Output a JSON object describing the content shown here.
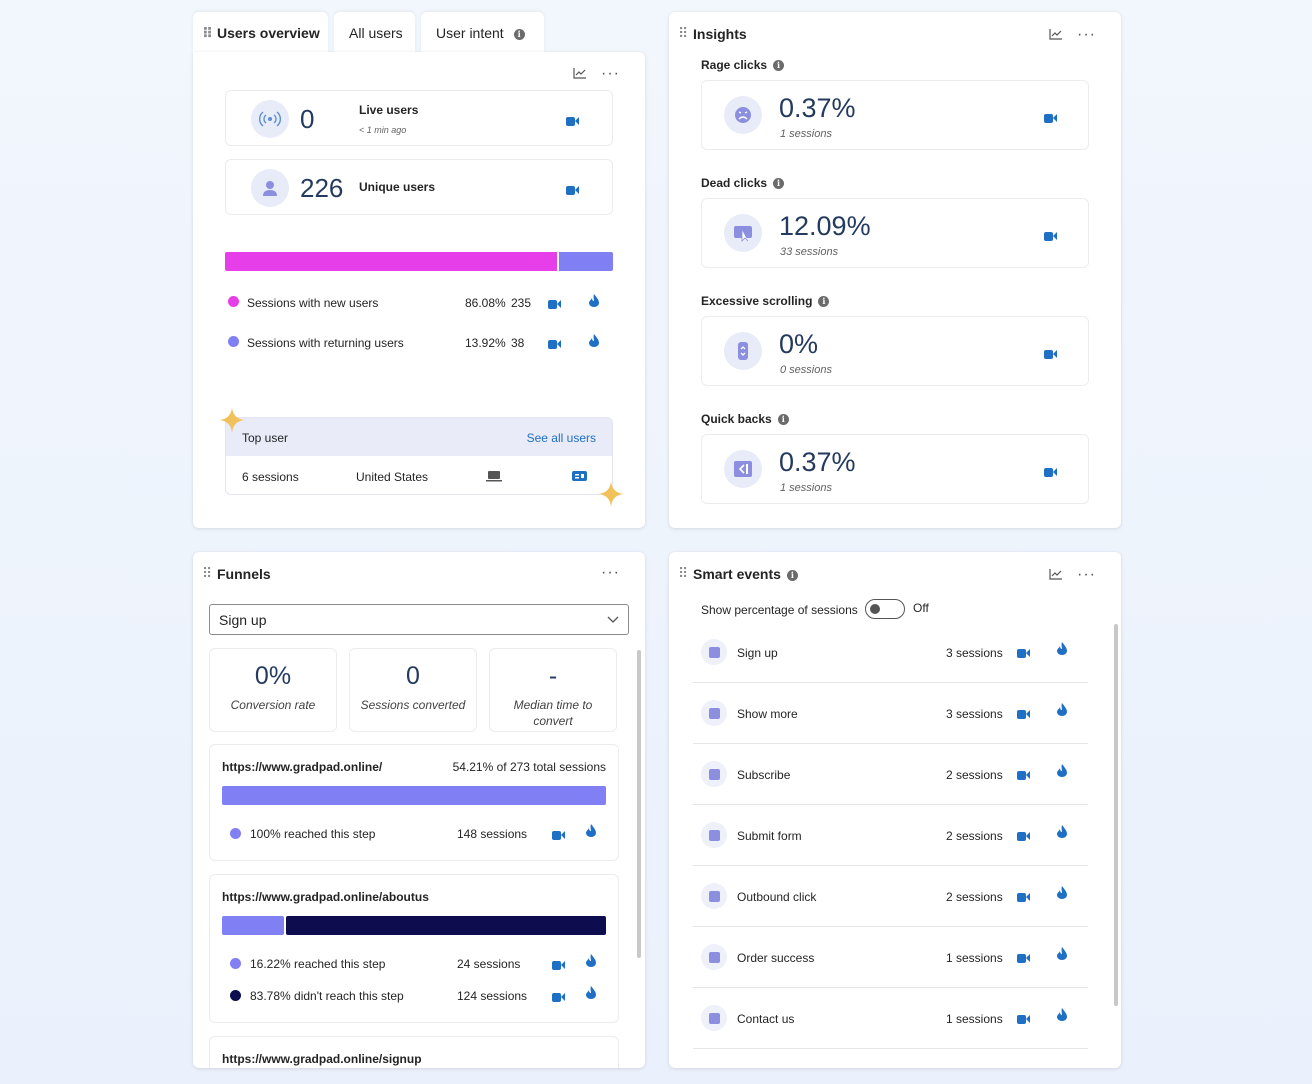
{
  "users_overview": {
    "tabs": [
      {
        "label": "Users overview"
      },
      {
        "label": "All users"
      },
      {
        "label": "User intent"
      }
    ],
    "live": {
      "value": "0",
      "label": "Live users",
      "sub": "< 1 min ago"
    },
    "unique": {
      "value": "226",
      "label": "Unique users"
    },
    "split_bar": {
      "new_fraction": 0.8608,
      "new_color": "#e63ee8",
      "returning_color": "#8080f4"
    },
    "legend": [
      {
        "label": "Sessions with new users",
        "pct": "86.08%",
        "count": "235",
        "color": "#e63ee8"
      },
      {
        "label": "Sessions with returning users",
        "pct": "13.92%",
        "count": "38",
        "color": "#8080f4"
      }
    ],
    "top_user": {
      "title": "Top user",
      "see_all": "See all users",
      "sessions": "6 sessions",
      "country": "United States"
    }
  },
  "insights": {
    "title": "Insights",
    "items": [
      {
        "label": "Rage clicks",
        "value": "0.37%",
        "sub": "1 sessions",
        "icon": "rage-face-icon"
      },
      {
        "label": "Dead clicks",
        "value": "12.09%",
        "sub": "33 sessions",
        "icon": "dead-click-icon"
      },
      {
        "label": "Excessive scrolling",
        "value": "0%",
        "sub": "0 sessions",
        "icon": "scroll-icon"
      },
      {
        "label": "Quick backs",
        "value": "0.37%",
        "sub": "1 sessions",
        "icon": "quick-back-icon"
      }
    ]
  },
  "funnels": {
    "title": "Funnels",
    "select_value": "Sign up",
    "stats": [
      {
        "value": "0%",
        "label": "Conversion rate"
      },
      {
        "value": "0",
        "label": "Sessions converted"
      },
      {
        "value": "-",
        "label": "Median time to convert"
      }
    ],
    "steps": [
      {
        "url": "https://www.gradpad.online/",
        "summary": "54.21% of 273 total sessions",
        "reached_fraction": 1.0,
        "rows": [
          {
            "label": "100% reached this step",
            "count": "148 sessions",
            "color": "#8080f4"
          }
        ]
      },
      {
        "url": "https://www.gradpad.online/aboutus",
        "summary": "",
        "reached_fraction": 0.1622,
        "rows": [
          {
            "label": "16.22% reached this step",
            "count": "24 sessions",
            "color": "#8080f4"
          },
          {
            "label": "83.78% didn't reach this step",
            "count": "124 sessions",
            "color": "#0c0c4e"
          }
        ]
      },
      {
        "url": "https://www.gradpad.online/signup",
        "summary": "",
        "rows": []
      }
    ]
  },
  "smart_events": {
    "title": "Smart events",
    "toggle_label": "Show percentage of sessions",
    "toggle_state": "Off",
    "events": [
      {
        "label": "Sign up",
        "count": "3 sessions"
      },
      {
        "label": "Show more",
        "count": "3 sessions"
      },
      {
        "label": "Subscribe",
        "count": "2 sessions"
      },
      {
        "label": "Submit form",
        "count": "2 sessions"
      },
      {
        "label": "Outbound click",
        "count": "2 sessions"
      },
      {
        "label": "Order success",
        "count": "1 sessions"
      },
      {
        "label": "Contact us",
        "count": "1 sessions"
      }
    ]
  },
  "colors": {
    "accent": "#1f6fc5",
    "number": "#243a5e",
    "new_users": "#e63ee8",
    "returning": "#8080f4",
    "dark_bar": "#0c0c4e"
  }
}
